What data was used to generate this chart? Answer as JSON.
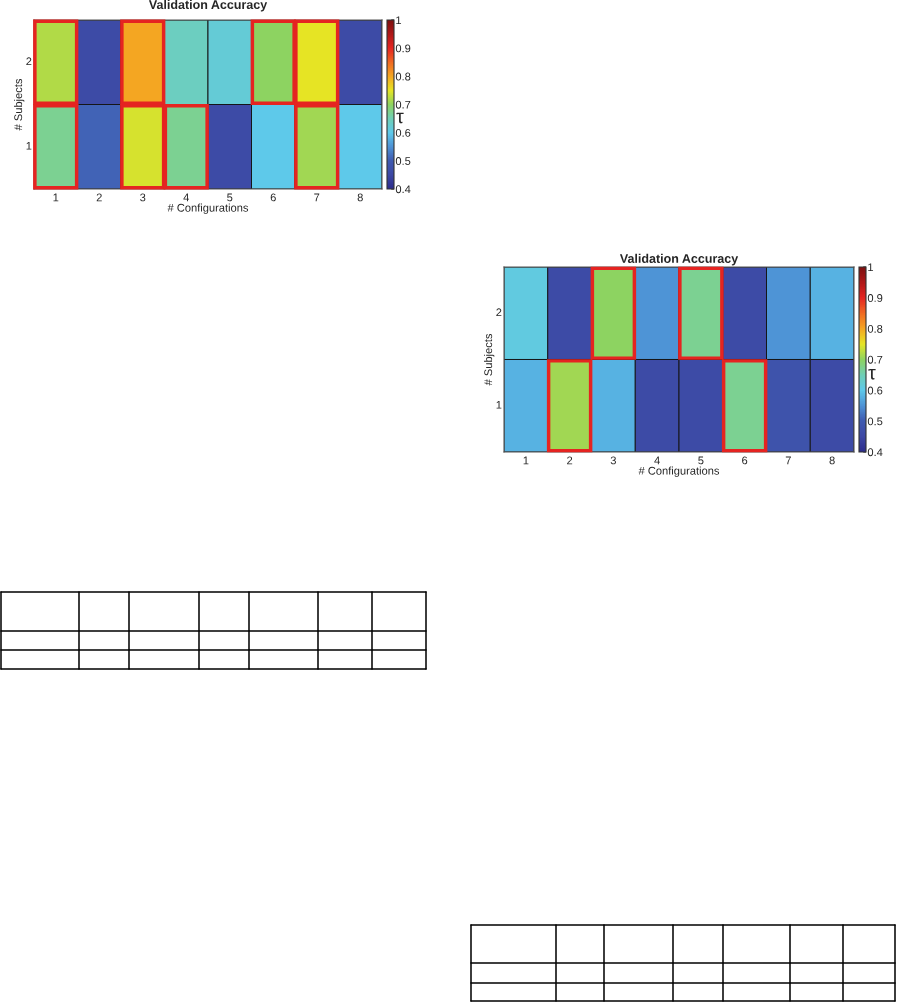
{
  "chart_data": [
    {
      "type": "heatmap",
      "title": "Validation Accuracy",
      "xlabel": "# Configurations",
      "ylabel": "# Subjects",
      "clabel": "τ",
      "categories": [
        "1",
        "2",
        "3",
        "4",
        "5",
        "6",
        "7",
        "8"
      ],
      "y_categories": [
        "2",
        "1"
      ],
      "cells": [
        [
          0.72,
          0.46,
          0.8,
          0.64,
          0.62,
          0.7,
          0.75,
          0.46
        ],
        [
          0.67,
          0.51,
          0.74,
          0.67,
          0.46,
          0.6,
          0.71,
          0.6
        ]
      ],
      "clim": [
        0.4,
        1
      ],
      "cticks": [
        0.4,
        0.5,
        0.6,
        0.7,
        0.8,
        0.9,
        1
      ],
      "annotations": [
        {
          "x": "1",
          "y": "2"
        },
        {
          "x": "3",
          "y": "2"
        },
        {
          "x": "6",
          "y": "2"
        },
        {
          "x": "7",
          "y": "2"
        },
        {
          "x": "1",
          "y": "1"
        },
        {
          "x": "3",
          "y": "1"
        },
        {
          "x": "4",
          "y": "1"
        },
        {
          "x": "7",
          "y": "1"
        }
      ]
    },
    {
      "type": "heatmap",
      "title": "Validation Accuracy",
      "xlabel": "# Configurations",
      "ylabel": "# Subjects",
      "clabel": "τ",
      "categories": [
        "1",
        "2",
        "3",
        "4",
        "5",
        "6",
        "7",
        "8"
      ],
      "y_categories": [
        "2",
        "1"
      ],
      "cells": [
        [
          0.61,
          0.46,
          0.7,
          0.55,
          0.67,
          0.46,
          0.55,
          0.58
        ],
        [
          0.58,
          0.71,
          0.58,
          0.46,
          0.46,
          0.67,
          0.48,
          0.46
        ]
      ],
      "clim": [
        0.4,
        1
      ],
      "cticks": [
        0.4,
        0.5,
        0.6,
        0.7,
        0.8,
        0.9,
        1
      ],
      "annotations": [
        {
          "x": "3",
          "y": "2"
        },
        {
          "x": "5",
          "y": "2"
        },
        {
          "x": "2",
          "y": "1"
        },
        {
          "x": "6",
          "y": "1"
        }
      ]
    }
  ]
}
